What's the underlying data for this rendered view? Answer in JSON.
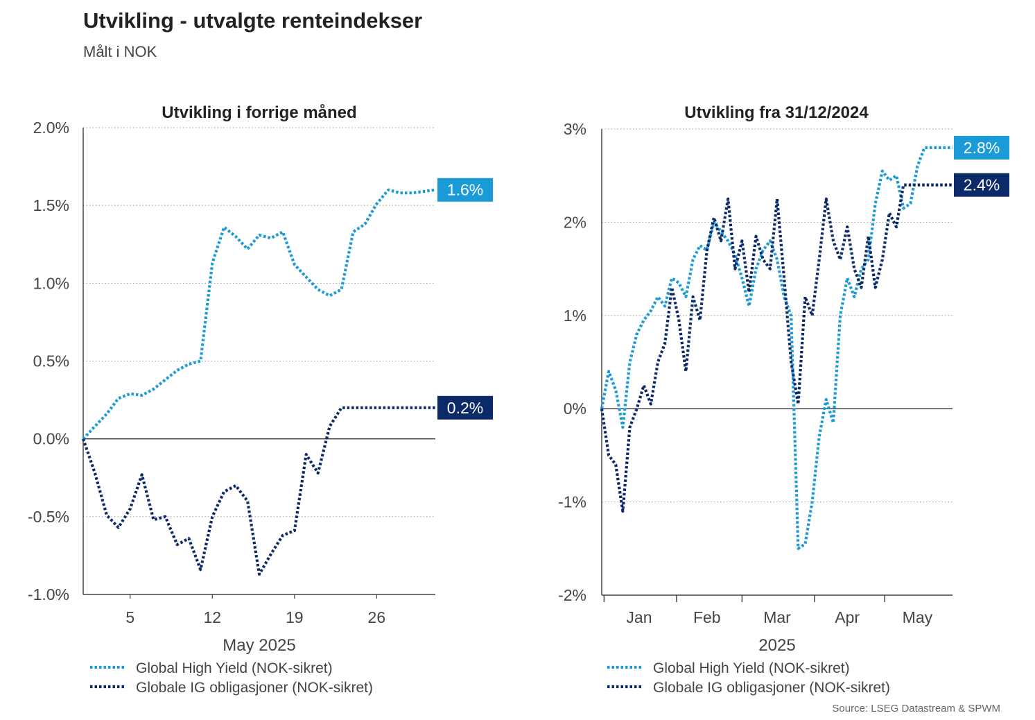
{
  "header": {
    "title": "Utvikling - utvalgte renteindekser",
    "subtitle": "Målt i NOK"
  },
  "source": "Source: LSEG Datastream & SPWM",
  "colors": {
    "high_yield": "#1a9ad6",
    "ig_bonds": "#0d2a68",
    "grid": "#999999",
    "axis": "#444444"
  },
  "chart_data": [
    {
      "type": "line",
      "title": "Utvikling i forrige måned",
      "xlabel": "May 2025",
      "ylabel": "",
      "x_range": [
        1,
        31
      ],
      "x_ticks": [
        {
          "x": 5,
          "label": "5"
        },
        {
          "x": 12,
          "label": "12"
        },
        {
          "x": 19,
          "label": "19"
        },
        {
          "x": 26,
          "label": "26"
        }
      ],
      "ylim": [
        -1.0,
        2.0
      ],
      "y_ticks": [
        {
          "y": 2.0,
          "label": "2.0%"
        },
        {
          "y": 1.5,
          "label": "1.5%"
        },
        {
          "y": 1.0,
          "label": "1.0%"
        },
        {
          "y": 0.5,
          "label": "0.5%"
        },
        {
          "y": 0.0,
          "label": "0.0%"
        },
        {
          "y": -0.5,
          "label": "-0.5%"
        },
        {
          "y": -1.0,
          "label": "-1.0%"
        }
      ],
      "grid": true,
      "series": [
        {
          "name": "Global High Yield (NOK-sikret)",
          "color_key": "high_yield",
          "end_label": "1.6%",
          "x": [
            1,
            2,
            3,
            4,
            5,
            6,
            7,
            8,
            9,
            10,
            11,
            12,
            13,
            14,
            15,
            16,
            17,
            18,
            19,
            20,
            21,
            22,
            23,
            24,
            25,
            26,
            27,
            28,
            29,
            30,
            31
          ],
          "values": [
            0.0,
            0.08,
            0.16,
            0.26,
            0.29,
            0.28,
            0.32,
            0.38,
            0.44,
            0.48,
            0.5,
            1.13,
            1.36,
            1.3,
            1.22,
            1.31,
            1.29,
            1.33,
            1.12,
            1.04,
            0.96,
            0.92,
            0.96,
            1.33,
            1.38,
            1.51,
            1.6,
            1.58,
            1.58,
            1.59,
            1.6
          ]
        },
        {
          "name": "Globale IG obligasjoner (NOK-sikret)",
          "color_key": "ig_bonds",
          "end_label": "0.2%",
          "x": [
            1,
            2,
            3,
            4,
            5,
            6,
            7,
            8,
            9,
            10,
            11,
            12,
            13,
            14,
            15,
            16,
            17,
            18,
            19,
            20,
            21,
            22,
            23,
            24,
            25,
            26,
            27,
            28,
            29,
            30,
            31
          ],
          "values": [
            0.0,
            -0.22,
            -0.49,
            -0.57,
            -0.45,
            -0.23,
            -0.52,
            -0.5,
            -0.68,
            -0.64,
            -0.84,
            -0.5,
            -0.34,
            -0.3,
            -0.4,
            -0.87,
            -0.74,
            -0.62,
            -0.59,
            -0.1,
            -0.22,
            0.08,
            0.2,
            0.2,
            0.2,
            0.2,
            0.2,
            0.2,
            0.2,
            0.2,
            0.2
          ]
        }
      ]
    },
    {
      "type": "line",
      "title": "Utvikling fra 31/12/2024",
      "xlabel": "2025",
      "ylabel": "",
      "x_range": [
        "2024-12-31",
        "2025-05-30"
      ],
      "x_month_boundaries": [
        "2025-01-01",
        "2025-02-01",
        "2025-03-01",
        "2025-04-01",
        "2025-05-01"
      ],
      "x_ticks": [
        {
          "x": "2025-01-16",
          "label": "Jan"
        },
        {
          "x": "2025-02-14",
          "label": "Feb"
        },
        {
          "x": "2025-03-16",
          "label": "Mar"
        },
        {
          "x": "2025-04-15",
          "label": "Apr"
        },
        {
          "x": "2025-05-15",
          "label": "May"
        }
      ],
      "ylim": [
        -2,
        3
      ],
      "y_ticks": [
        {
          "y": 3,
          "label": "3%"
        },
        {
          "y": 2,
          "label": "2%"
        },
        {
          "y": 1,
          "label": "1%"
        },
        {
          "y": 0,
          "label": "0%"
        },
        {
          "y": -1,
          "label": "-1%"
        },
        {
          "y": -2,
          "label": "-2%"
        }
      ],
      "grid": true,
      "series": [
        {
          "name": "Global High Yield (NOK-sikret)",
          "color_key": "high_yield",
          "end_label": "2.8%",
          "x": [
            "2024-12-31",
            "2025-01-03",
            "2025-01-06",
            "2025-01-09",
            "2025-01-12",
            "2025-01-15",
            "2025-01-18",
            "2025-01-21",
            "2025-01-24",
            "2025-01-27",
            "2025-01-30",
            "2025-02-02",
            "2025-02-05",
            "2025-02-08",
            "2025-02-11",
            "2025-02-14",
            "2025-02-17",
            "2025-02-20",
            "2025-02-23",
            "2025-02-26",
            "2025-03-01",
            "2025-03-04",
            "2025-03-07",
            "2025-03-10",
            "2025-03-13",
            "2025-03-16",
            "2025-03-19",
            "2025-03-22",
            "2025-03-25",
            "2025-03-28",
            "2025-03-31",
            "2025-04-03",
            "2025-04-06",
            "2025-04-09",
            "2025-04-12",
            "2025-04-15",
            "2025-04-18",
            "2025-04-21",
            "2025-04-24",
            "2025-04-27",
            "2025-04-30",
            "2025-05-03",
            "2025-05-06",
            "2025-05-09",
            "2025-05-12",
            "2025-05-15",
            "2025-05-18",
            "2025-05-21",
            "2025-05-24",
            "2025-05-27",
            "2025-05-30"
          ],
          "values": [
            0.0,
            0.4,
            0.2,
            -0.2,
            0.5,
            0.8,
            0.95,
            1.05,
            1.2,
            1.1,
            1.4,
            1.35,
            1.2,
            1.6,
            1.75,
            1.7,
            2.0,
            1.9,
            1.8,
            1.65,
            1.4,
            1.1,
            1.5,
            1.7,
            1.8,
            1.6,
            1.2,
            1.0,
            -1.5,
            -1.45,
            -1.0,
            -0.3,
            0.1,
            -0.15,
            1.0,
            1.4,
            1.2,
            1.5,
            1.6,
            2.2,
            2.55,
            2.45,
            2.5,
            2.15,
            2.2,
            2.6,
            2.8,
            2.8,
            2.8,
            2.8,
            2.8
          ]
        },
        {
          "name": "Globale IG obligasjoner (NOK-sikret)",
          "color_key": "ig_bonds",
          "end_label": "2.4%",
          "x": [
            "2024-12-31",
            "2025-01-03",
            "2025-01-06",
            "2025-01-09",
            "2025-01-12",
            "2025-01-15",
            "2025-01-18",
            "2025-01-21",
            "2025-01-24",
            "2025-01-27",
            "2025-01-30",
            "2025-02-02",
            "2025-02-05",
            "2025-02-08",
            "2025-02-11",
            "2025-02-14",
            "2025-02-17",
            "2025-02-20",
            "2025-02-23",
            "2025-02-26",
            "2025-03-01",
            "2025-03-04",
            "2025-03-07",
            "2025-03-10",
            "2025-03-13",
            "2025-03-16",
            "2025-03-19",
            "2025-03-22",
            "2025-03-25",
            "2025-03-28",
            "2025-03-31",
            "2025-04-03",
            "2025-04-06",
            "2025-04-09",
            "2025-04-12",
            "2025-04-15",
            "2025-04-18",
            "2025-04-21",
            "2025-04-24",
            "2025-04-27",
            "2025-04-30",
            "2025-05-03",
            "2025-05-06",
            "2025-05-09",
            "2025-05-12",
            "2025-05-15",
            "2025-05-18",
            "2025-05-21",
            "2025-05-24",
            "2025-05-27",
            "2025-05-30"
          ],
          "values": [
            0.0,
            -0.5,
            -0.6,
            -1.1,
            -0.2,
            0.0,
            0.25,
            0.05,
            0.5,
            0.7,
            1.3,
            0.95,
            0.4,
            1.2,
            0.95,
            1.7,
            2.05,
            1.8,
            2.25,
            1.5,
            1.8,
            1.25,
            1.85,
            1.6,
            1.5,
            2.25,
            1.4,
            0.5,
            0.05,
            1.2,
            1.0,
            1.6,
            2.25,
            1.8,
            1.6,
            1.95,
            1.5,
            1.3,
            1.85,
            1.3,
            1.6,
            2.1,
            1.95,
            2.4,
            2.4,
            2.4,
            2.4,
            2.4,
            2.4,
            2.4,
            2.4
          ]
        }
      ]
    }
  ]
}
